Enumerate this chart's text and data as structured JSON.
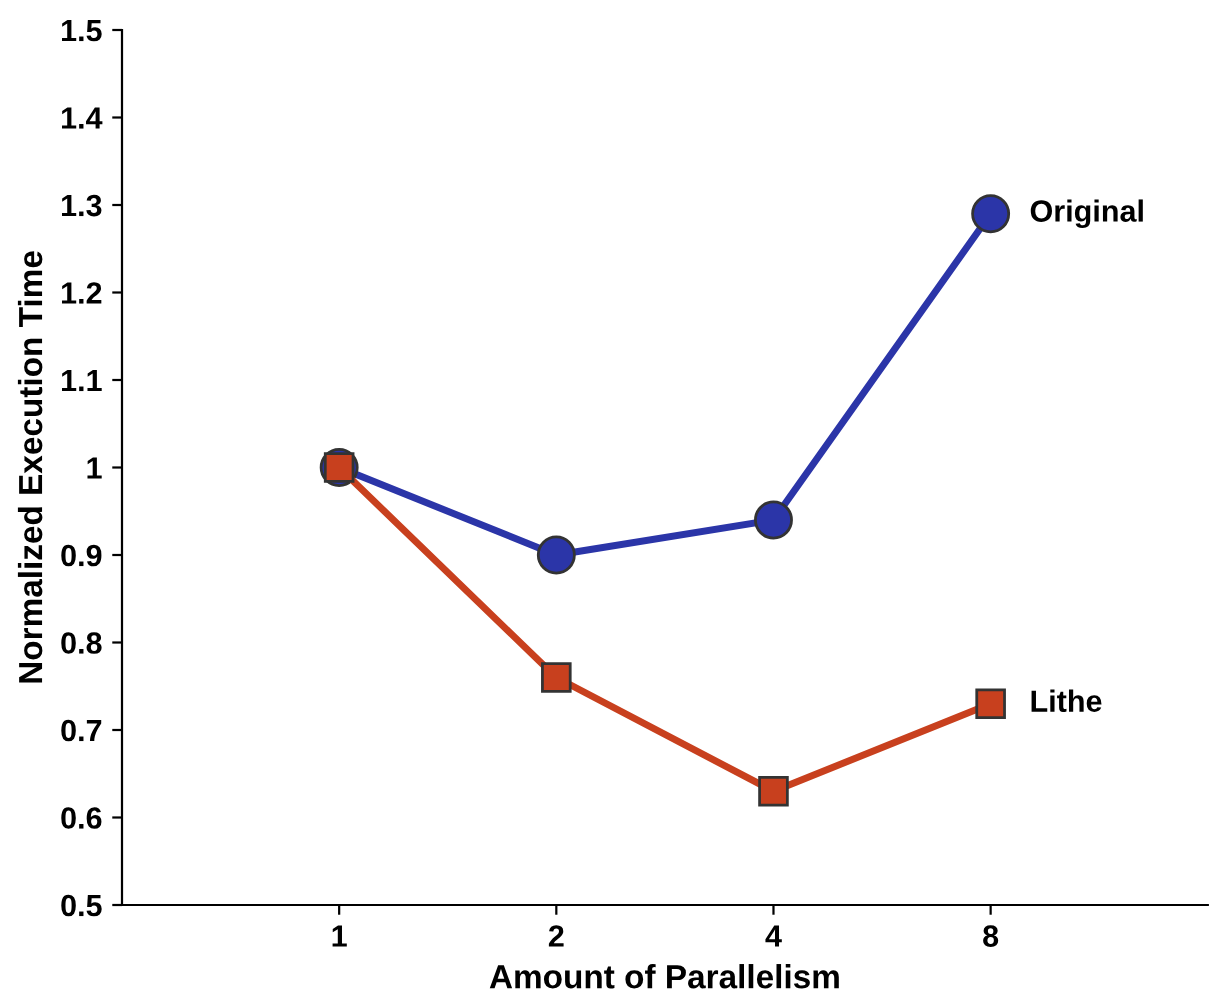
{
  "chart_data": {
    "type": "line",
    "xlabel": "Amount of Parallelism",
    "ylabel": "Normalized Execution Time",
    "categories": [
      "1",
      "2",
      "4",
      "8"
    ],
    "series": [
      {
        "name": "Original",
        "color": "#2b35a8",
        "marker": "circle",
        "values": [
          1.0,
          0.9,
          0.94,
          1.29
        ]
      },
      {
        "name": "Lithe",
        "color": "#c8401e",
        "marker": "square",
        "values": [
          1.0,
          0.76,
          0.63,
          0.73
        ]
      }
    ],
    "ylim": [
      0.5,
      1.5
    ],
    "yticks": [
      0.5,
      0.6,
      0.7,
      0.8,
      0.9,
      1,
      1.1,
      1.2,
      1.3,
      1.4,
      1.5
    ],
    "grid": false,
    "legend": false
  }
}
